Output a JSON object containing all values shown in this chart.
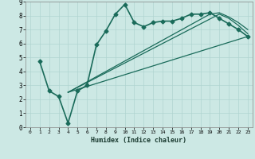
{
  "xlabel": "Humidex (Indice chaleur)",
  "xlim": [
    -0.5,
    23.5
  ],
  "ylim": [
    0,
    9
  ],
  "bg_color": "#cce8e4",
  "grid_color": "#b0d4d0",
  "line_color": "#1a6b5a",
  "lines": [
    {
      "x": [
        1,
        2,
        3,
        4,
        5,
        6,
        7,
        8,
        9,
        10,
        11,
        12,
        13,
        14,
        15,
        16,
        17,
        18,
        19,
        20,
        21,
        22,
        23
      ],
      "y": [
        4.7,
        2.6,
        2.2,
        0.3,
        2.6,
        3.0,
        5.9,
        6.9,
        8.1,
        8.8,
        7.5,
        7.2,
        7.5,
        7.6,
        7.6,
        7.8,
        8.1,
        8.1,
        8.2,
        7.8,
        7.4,
        7.0,
        6.5
      ],
      "marker": "D",
      "markersize": 2.5,
      "linewidth": 1.2
    },
    {
      "x": [
        4,
        23
      ],
      "y": [
        2.5,
        6.5
      ],
      "marker": null,
      "linewidth": 0.9
    },
    {
      "x": [
        4,
        20,
        21,
        22,
        23
      ],
      "y": [
        2.5,
        8.1,
        7.8,
        7.3,
        6.7
      ],
      "marker": null,
      "linewidth": 0.9
    },
    {
      "x": [
        4,
        19,
        20,
        21,
        22,
        23
      ],
      "y": [
        2.5,
        8.1,
        8.2,
        7.9,
        7.5,
        7.0
      ],
      "marker": null,
      "linewidth": 0.9
    }
  ]
}
